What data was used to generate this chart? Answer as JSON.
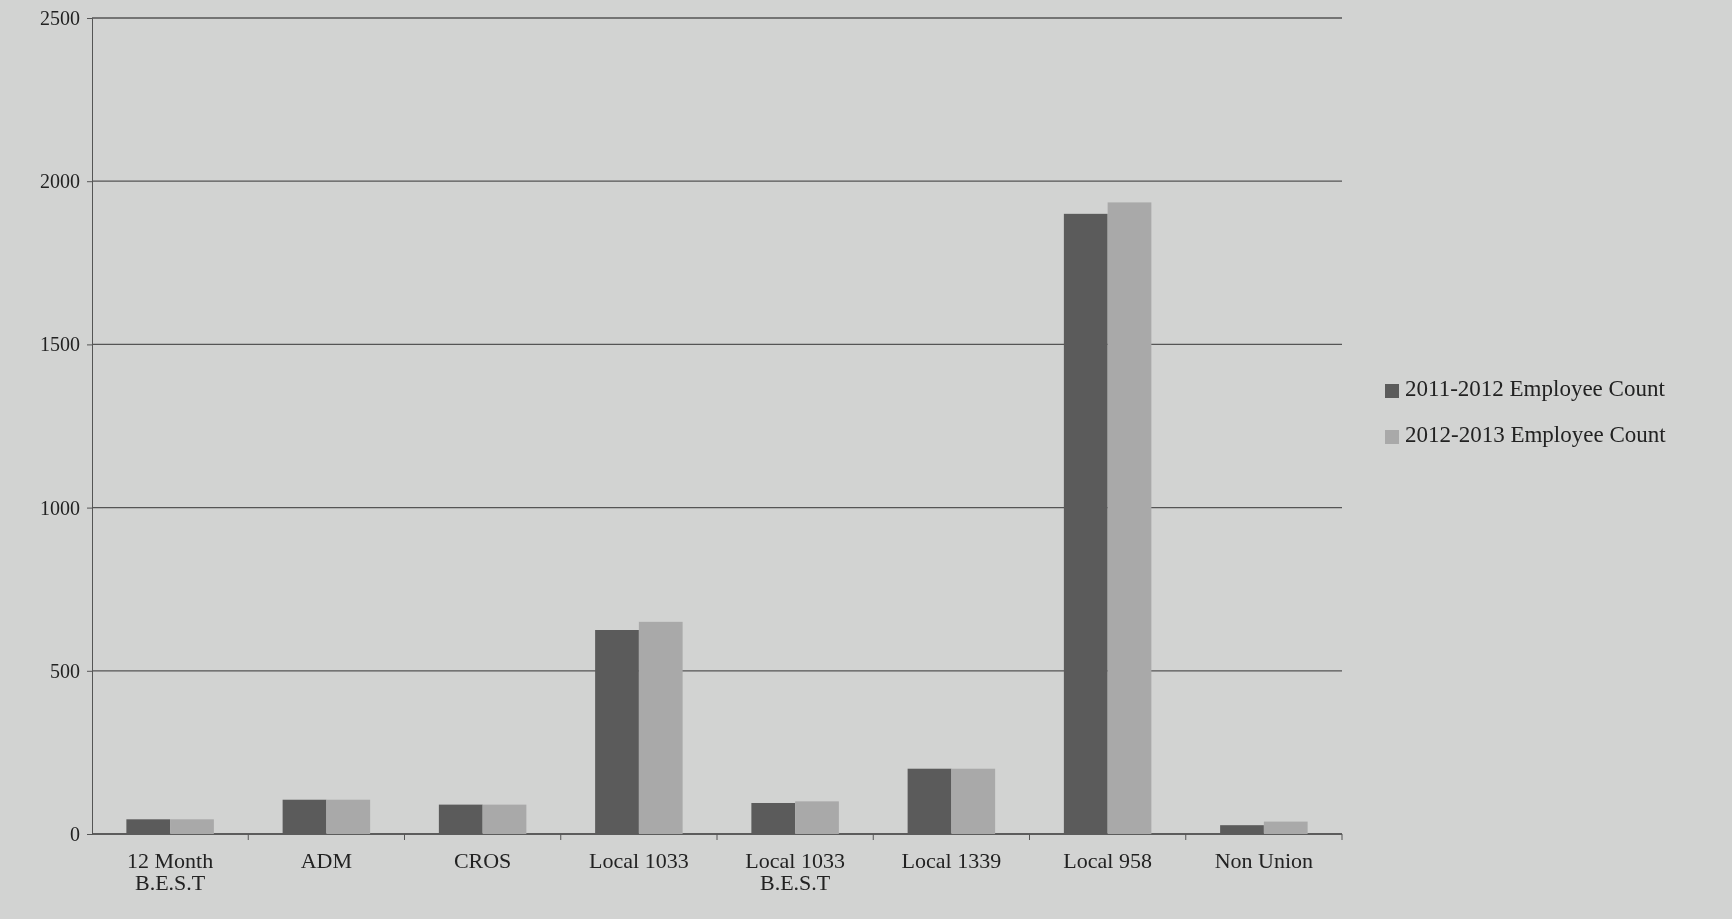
{
  "chart_data": {
    "type": "bar",
    "categories": [
      "12 Month\nB.E.S.T",
      "ADM",
      "CROS",
      "Local 1033",
      "Local 1033\nB.E.S.T",
      "Local 1339",
      "Local 958",
      "Non Union"
    ],
    "series": [
      {
        "name": "2011-2012 Employee Count",
        "color": "#5b5b5b",
        "values": [
          45,
          105,
          90,
          625,
          95,
          200,
          1900,
          27
        ]
      },
      {
        "name": "2012-2013 Employee Count",
        "color": "#a9a9a9",
        "values": [
          45,
          105,
          90,
          650,
          100,
          200,
          1935,
          38
        ]
      }
    ],
    "ylim": [
      0,
      2500
    ],
    "yticks": [
      0,
      500,
      1000,
      1500,
      2000,
      2500
    ],
    "grid": "y",
    "legend": "right"
  }
}
